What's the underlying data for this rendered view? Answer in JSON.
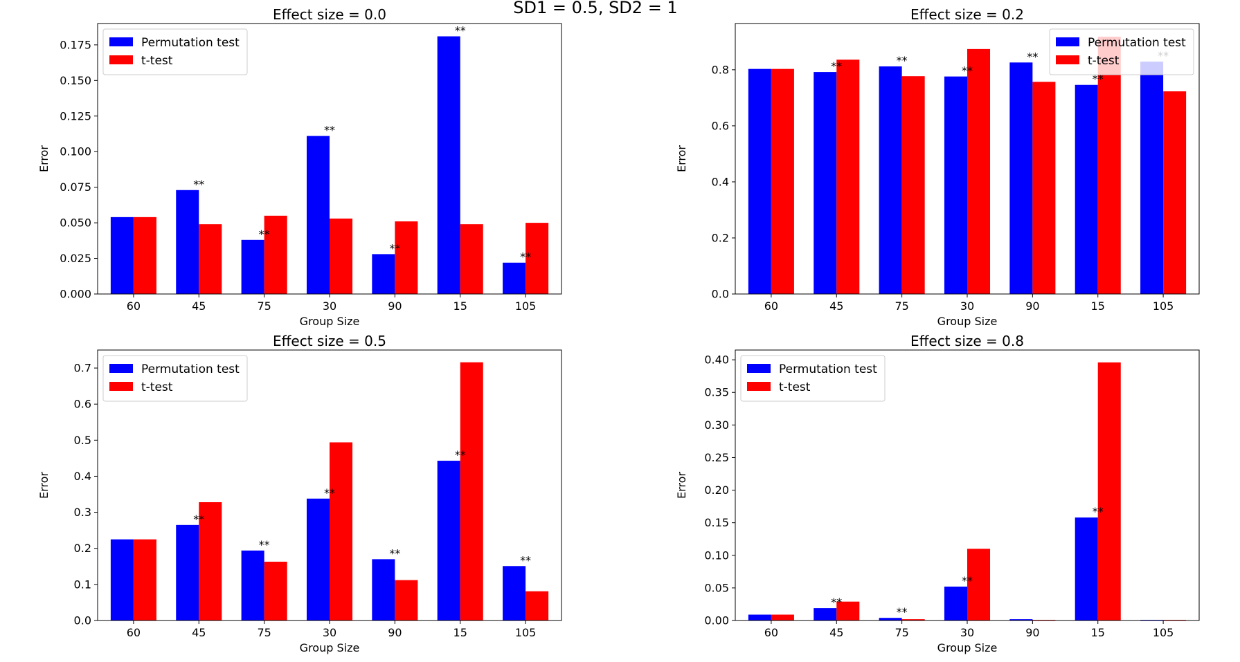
{
  "figure": {
    "suptitle": "SD1 = 0.5, SD2 = 1"
  },
  "colors": {
    "permutation": "#0000ff",
    "ttest": "#ff0000"
  },
  "chart_data": [
    {
      "type": "bar",
      "title": "Effect size = 0.0",
      "xlabel": "Group Size",
      "ylabel": "Error",
      "categories": [
        "60",
        "45",
        "75",
        "30",
        "90",
        "15",
        "105"
      ],
      "ylim": [
        0,
        0.19
      ],
      "yticks": [
        0.0,
        0.025,
        0.05,
        0.075,
        0.1,
        0.125,
        0.15,
        0.175
      ],
      "ytick_labels": [
        "0.000",
        "0.025",
        "0.050",
        "0.075",
        "0.100",
        "0.125",
        "0.150",
        "0.175"
      ],
      "legend": "upper left",
      "series": [
        {
          "name": "Permutation test",
          "values": [
            0.054,
            0.073,
            0.038,
            0.111,
            0.028,
            0.181,
            0.022
          ]
        },
        {
          "name": "t-test",
          "values": [
            0.054,
            0.049,
            0.055,
            0.053,
            0.051,
            0.049,
            0.05
          ]
        }
      ],
      "significant": [
        false,
        true,
        true,
        true,
        true,
        true,
        true
      ],
      "marker": "**"
    },
    {
      "type": "bar",
      "title": "Effect size = 0.2",
      "xlabel": "Group Size",
      "ylabel": "Error",
      "categories": [
        "60",
        "45",
        "75",
        "30",
        "90",
        "15",
        "105"
      ],
      "ylim": [
        0,
        0.965
      ],
      "yticks": [
        0.0,
        0.2,
        0.4,
        0.6,
        0.8
      ],
      "ytick_labels": [
        "0.0",
        "0.2",
        "0.4",
        "0.6",
        "0.8"
      ],
      "legend": "upper right",
      "series": [
        {
          "name": "Permutation test",
          "values": [
            0.803,
            0.792,
            0.812,
            0.776,
            0.826,
            0.746,
            0.829
          ]
        },
        {
          "name": "t-test",
          "values": [
            0.803,
            0.836,
            0.777,
            0.874,
            0.757,
            0.918,
            0.723
          ]
        }
      ],
      "significant": [
        false,
        true,
        true,
        true,
        true,
        true,
        true
      ],
      "marker": "**"
    },
    {
      "type": "bar",
      "title": "Effect size = 0.5",
      "xlabel": "Group Size",
      "ylabel": "Error",
      "categories": [
        "60",
        "45",
        "75",
        "30",
        "90",
        "15",
        "105"
      ],
      "ylim": [
        0,
        0.75
      ],
      "yticks": [
        0.0,
        0.1,
        0.2,
        0.3,
        0.4,
        0.5,
        0.6,
        0.7
      ],
      "ytick_labels": [
        "0.0",
        "0.1",
        "0.2",
        "0.3",
        "0.4",
        "0.5",
        "0.6",
        "0.7"
      ],
      "legend": "upper left",
      "series": [
        {
          "name": "Permutation test",
          "values": [
            0.225,
            0.265,
            0.194,
            0.338,
            0.17,
            0.443,
            0.151
          ]
        },
        {
          "name": "t-test",
          "values": [
            0.225,
            0.328,
            0.163,
            0.494,
            0.112,
            0.716,
            0.081
          ]
        }
      ],
      "significant": [
        false,
        true,
        true,
        true,
        true,
        true,
        true
      ],
      "marker": "**"
    },
    {
      "type": "bar",
      "title": "Effect size = 0.8",
      "xlabel": "Group Size",
      "ylabel": "Error",
      "categories": [
        "60",
        "45",
        "75",
        "30",
        "90",
        "15",
        "105"
      ],
      "ylim": [
        0,
        0.415
      ],
      "yticks": [
        0.0,
        0.05,
        0.1,
        0.15,
        0.2,
        0.25,
        0.3,
        0.35,
        0.4
      ],
      "ytick_labels": [
        "0.00",
        "0.05",
        "0.10",
        "0.15",
        "0.20",
        "0.25",
        "0.30",
        "0.35",
        "0.40"
      ],
      "legend": "upper left",
      "series": [
        {
          "name": "Permutation test",
          "values": [
            0.009,
            0.019,
            0.004,
            0.052,
            0.002,
            0.158,
            0.001
          ]
        },
        {
          "name": "t-test",
          "values": [
            0.009,
            0.029,
            0.002,
            0.11,
            0.001,
            0.396,
            0.001
          ]
        }
      ],
      "significant": [
        false,
        true,
        true,
        true,
        false,
        true,
        false
      ],
      "marker": "**"
    }
  ]
}
